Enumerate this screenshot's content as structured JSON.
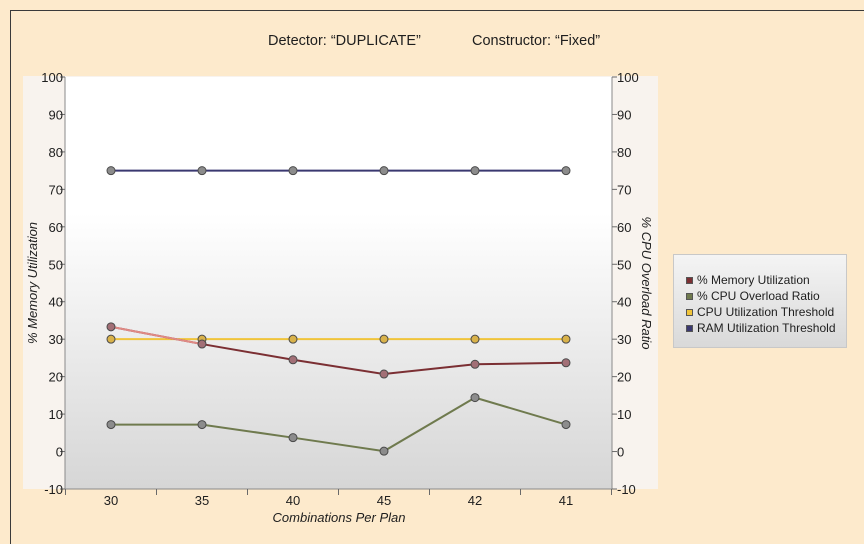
{
  "header": {
    "detector": "Detector: “DUPLICATE”",
    "constructor": "Constructor: “Fixed”"
  },
  "chart_data": {
    "type": "line",
    "categories": [
      "30",
      "35",
      "40",
      "45",
      "42",
      "41"
    ],
    "xlabel": "Combinations Per Plan",
    "ylabel_left": "% Memory Utilization",
    "ylabel_right": "% CPU Overload Ratio",
    "ylim": [
      -10,
      100
    ],
    "yticks": [
      -10,
      0,
      10,
      20,
      30,
      40,
      50,
      60,
      70,
      80,
      90,
      100
    ],
    "grid": false,
    "legend_position": "right",
    "series": [
      {
        "name": "% Memory Utilization",
        "color": "#7b2f33",
        "values": [
          33.3,
          28.7,
          24.5,
          20.7,
          23.3,
          23.7
        ]
      },
      {
        "name": "% CPU Overload Ratio",
        "color": "#6f7a4e",
        "values": [
          7.2,
          7.2,
          3.7,
          0.1,
          14.4,
          7.2
        ]
      },
      {
        "name": "CPU Utilization Threshold",
        "color": "#f0c43a",
        "values": [
          30,
          30,
          30,
          30,
          30,
          30
        ]
      },
      {
        "name": "RAM Utilization Threshold",
        "color": "#3a3870",
        "values": [
          75,
          75,
          75,
          75,
          75,
          75
        ]
      }
    ]
  }
}
